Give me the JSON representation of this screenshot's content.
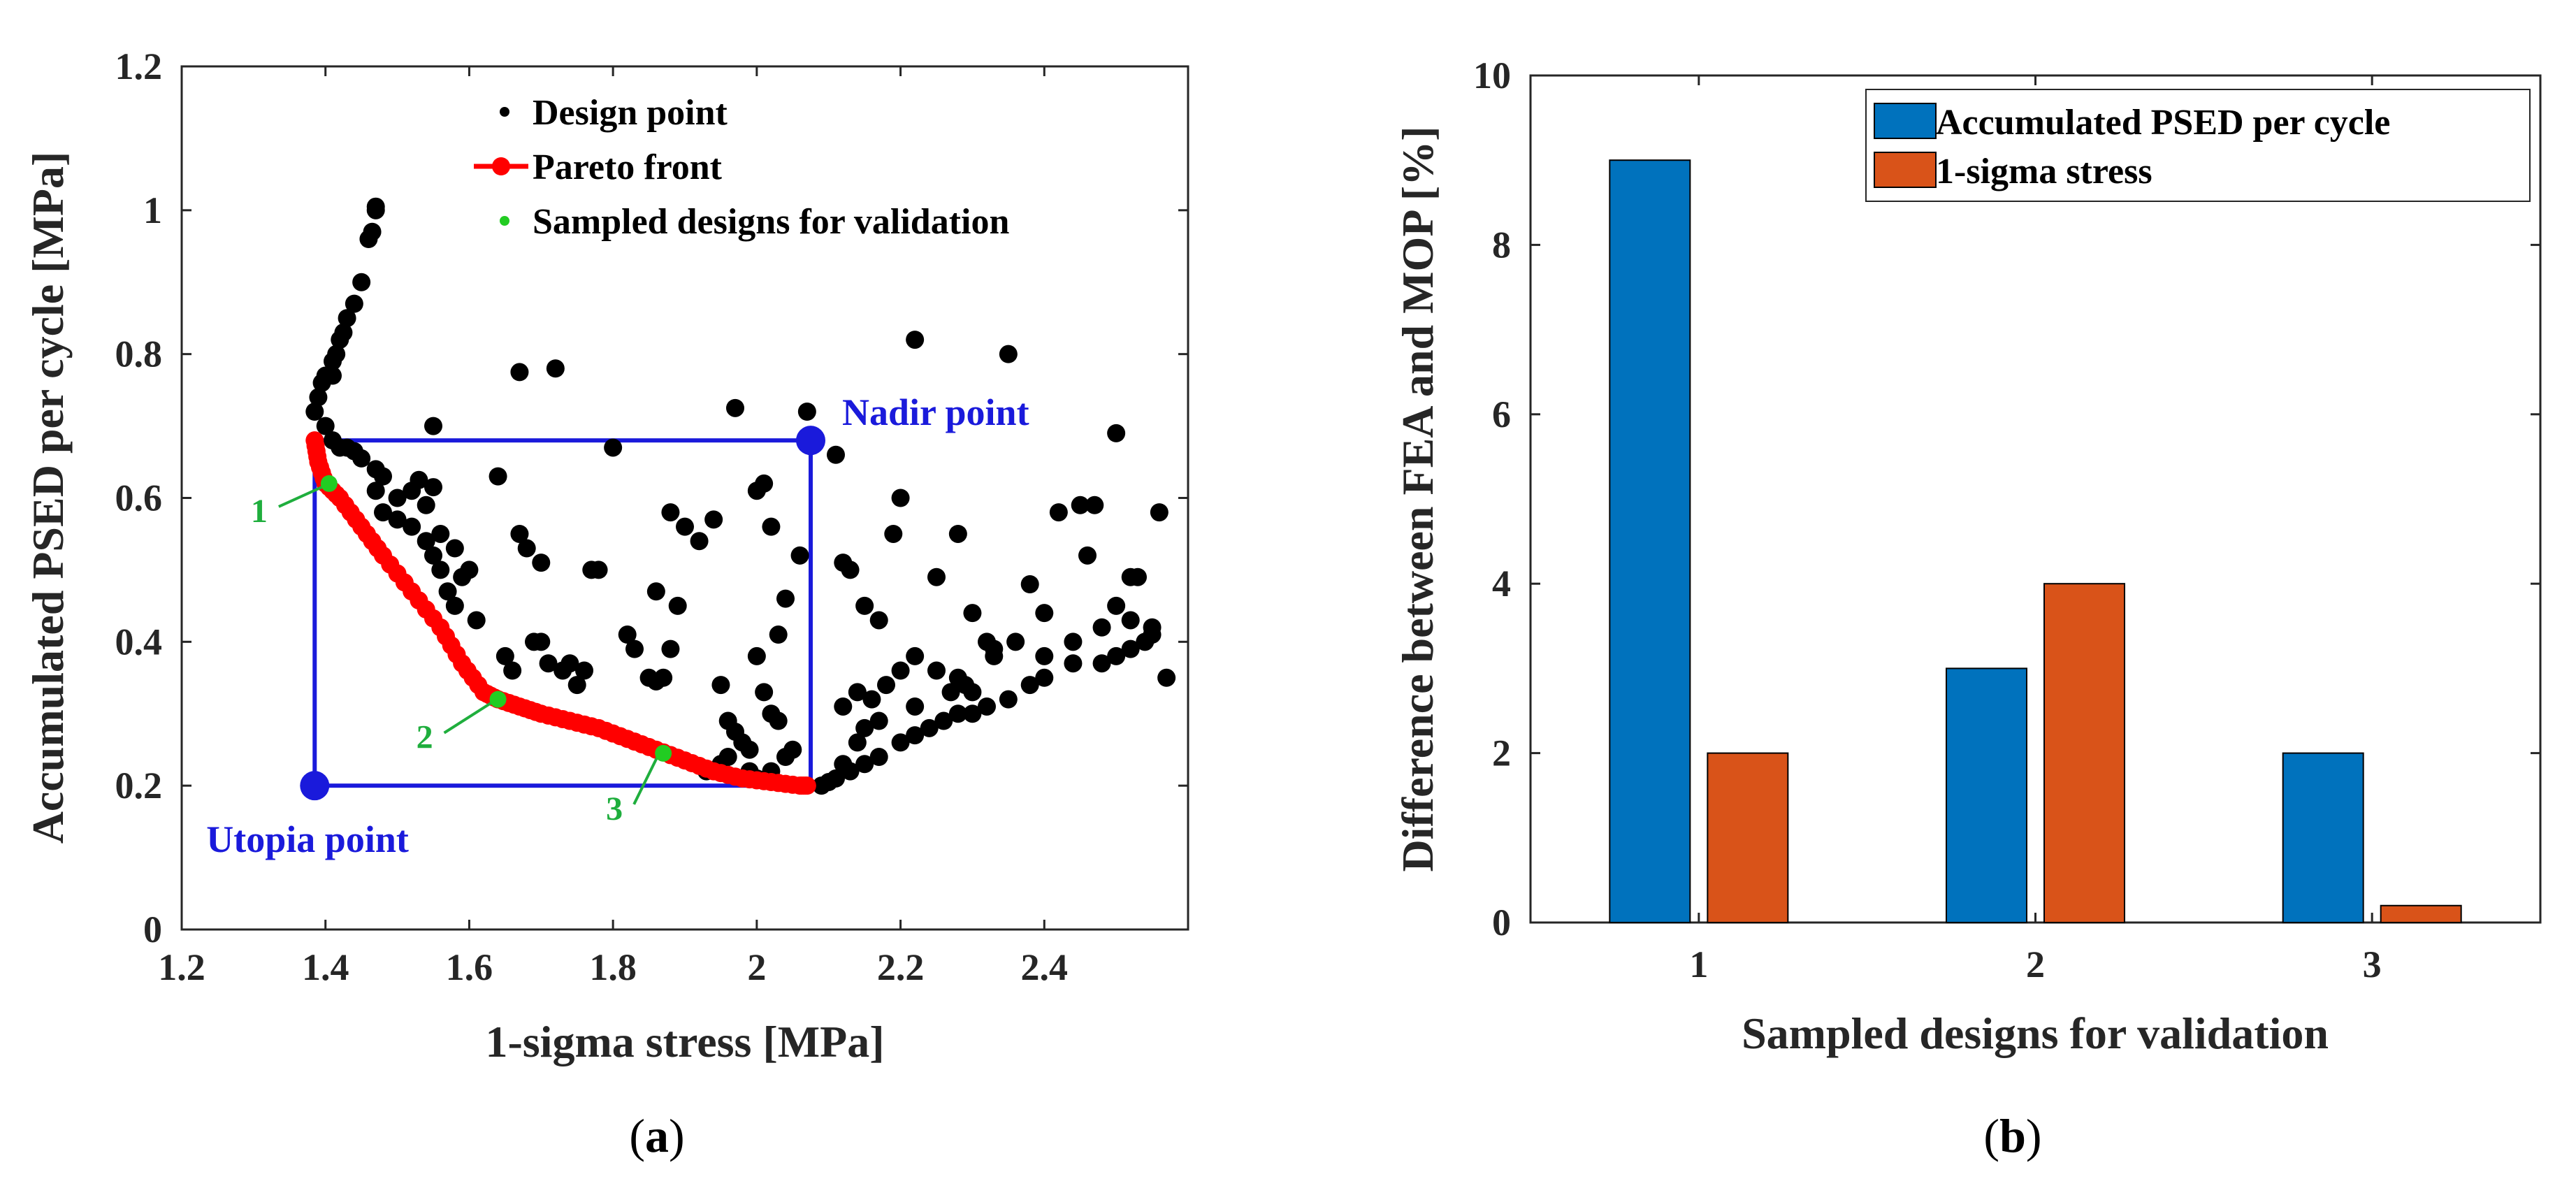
{
  "chart_data": [
    {
      "panel": "(a)",
      "type": "scatter",
      "title": "",
      "xlabel": "1-sigma stress [MPa]",
      "ylabel": "Accumulated PSED per cycle [MPa]",
      "xlim": [
        1.2,
        2.6
      ],
      "ylim": [
        0,
        1.2
      ],
      "xticks": [
        "1.2",
        "1.4",
        "1.6",
        "1.8",
        "2",
        "2.2",
        "2.4"
      ],
      "yticks": [
        "0",
        "0.2",
        "0.4",
        "0.6",
        "0.8",
        "1",
        "1.2"
      ],
      "legend": {
        "position": "top",
        "entries": [
          "Design point",
          "Pareto front",
          "Sampled designs for validation"
        ]
      },
      "colors": {
        "design": "#000000",
        "pareto": "#ff0000",
        "sampled": "#22cc22",
        "box": "#1a1adb",
        "annot_green": "#1fae3d"
      },
      "series": [
        {
          "name": "Design point",
          "points": [
            [
              1.385,
              0.72
            ],
            [
              1.39,
              0.74
            ],
            [
              1.395,
              0.76
            ],
            [
              1.4,
              0.77
            ],
            [
              1.41,
              0.79
            ],
            [
              1.415,
              0.8
            ],
            [
              1.42,
              0.82
            ],
            [
              1.425,
              0.83
            ],
            [
              1.43,
              0.85
            ],
            [
              1.44,
              0.87
            ],
            [
              1.45,
              0.9
            ],
            [
              1.46,
              0.96
            ],
            [
              1.465,
              0.97
            ],
            [
              1.47,
              1.0
            ],
            [
              1.47,
              1.005
            ],
            [
              1.41,
              0.77
            ],
            [
              1.4,
              0.7
            ],
            [
              1.41,
              0.68
            ],
            [
              1.42,
              0.67
            ],
            [
              1.43,
              0.67
            ],
            [
              1.44,
              0.665
            ],
            [
              1.45,
              0.655
            ],
            [
              1.47,
              0.64
            ],
            [
              1.48,
              0.63
            ],
            [
              1.47,
              0.61
            ],
            [
              1.48,
              0.58
            ],
            [
              1.5,
              0.57
            ],
            [
              1.5,
              0.6
            ],
            [
              1.52,
              0.61
            ],
            [
              1.53,
              0.625
            ],
            [
              1.55,
              0.615
            ],
            [
              1.54,
              0.59
            ],
            [
              1.52,
              0.56
            ],
            [
              1.54,
              0.54
            ],
            [
              1.55,
              0.52
            ],
            [
              1.56,
              0.55
            ],
            [
              1.58,
              0.53
            ],
            [
              1.59,
              0.49
            ],
            [
              1.56,
              0.5
            ],
            [
              1.57,
              0.47
            ],
            [
              1.58,
              0.45
            ],
            [
              1.6,
              0.5
            ],
            [
              1.61,
              0.43
            ],
            [
              1.55,
              0.7
            ],
            [
              1.64,
              0.63
            ],
            [
              1.67,
              0.55
            ],
            [
              1.68,
              0.53
            ],
            [
              1.7,
              0.51
            ],
            [
              1.65,
              0.38
            ],
            [
              1.66,
              0.36
            ],
            [
              1.67,
              0.775
            ],
            [
              1.72,
              0.78
            ],
            [
              1.69,
              0.4
            ],
            [
              1.7,
              0.4
            ],
            [
              1.71,
              0.37
            ],
            [
              1.73,
              0.36
            ],
            [
              1.74,
              0.37
            ],
            [
              1.75,
              0.34
            ],
            [
              1.76,
              0.36
            ],
            [
              1.77,
              0.5
            ],
            [
              1.78,
              0.5
            ],
            [
              1.8,
              0.67
            ],
            [
              1.82,
              0.41
            ],
            [
              1.83,
              0.39
            ],
            [
              1.85,
              0.35
            ],
            [
              1.86,
              0.345
            ],
            [
              1.87,
              0.35
            ],
            [
              1.88,
              0.39
            ],
            [
              1.89,
              0.45
            ],
            [
              1.86,
              0.47
            ],
            [
              1.88,
              0.58
            ],
            [
              1.9,
              0.56
            ],
            [
              1.92,
              0.54
            ],
            [
              1.94,
              0.57
            ],
            [
              1.95,
              0.34
            ],
            [
              1.96,
              0.29
            ],
            [
              1.97,
              0.275
            ],
            [
              1.98,
              0.26
            ],
            [
              1.99,
              0.25
            ],
            [
              2.0,
              0.38
            ],
            [
              2.01,
              0.33
            ],
            [
              2.02,
              0.3
            ],
            [
              2.03,
              0.29
            ],
            [
              2.04,
              0.46
            ],
            [
              2.03,
              0.41
            ],
            [
              2.01,
              0.62
            ],
            [
              2.0,
              0.61
            ],
            [
              1.97,
              0.725
            ],
            [
              2.02,
              0.56
            ],
            [
              2.05,
              0.25
            ],
            [
              2.06,
              0.52
            ],
            [
              2.07,
              0.72
            ],
            [
              1.93,
              0.22
            ],
            [
              1.95,
              0.23
            ],
            [
              1.96,
              0.24
            ],
            [
              1.99,
              0.22
            ],
            [
              2.0,
              0.21
            ],
            [
              2.02,
              0.22
            ],
            [
              2.04,
              0.24
            ],
            [
              2.09,
              0.2
            ],
            [
              2.1,
              0.205
            ],
            [
              2.11,
              0.21
            ],
            [
              2.12,
              0.23
            ],
            [
              2.13,
              0.22
            ],
            [
              2.15,
              0.23
            ],
            [
              2.17,
              0.24
            ],
            [
              2.2,
              0.26
            ],
            [
              2.22,
              0.27
            ],
            [
              2.24,
              0.28
            ],
            [
              2.26,
              0.29
            ],
            [
              2.28,
              0.3
            ],
            [
              2.3,
              0.3
            ],
            [
              2.32,
              0.31
            ],
            [
              2.35,
              0.32
            ],
            [
              2.38,
              0.34
            ],
            [
              2.4,
              0.35
            ],
            [
              2.44,
              0.37
            ],
            [
              2.48,
              0.37
            ],
            [
              2.5,
              0.38
            ],
            [
              2.52,
              0.39
            ],
            [
              2.54,
              0.4
            ],
            [
              2.12,
              0.31
            ],
            [
              2.14,
              0.33
            ],
            [
              2.16,
              0.32
            ],
            [
              2.18,
              0.34
            ],
            [
              2.2,
              0.36
            ],
            [
              2.22,
              0.38
            ],
            [
              2.25,
              0.36
            ],
            [
              2.28,
              0.35
            ],
            [
              2.3,
              0.33
            ],
            [
              2.33,
              0.38
            ],
            [
              2.36,
              0.4
            ],
            [
              2.4,
              0.38
            ],
            [
              2.44,
              0.4
            ],
            [
              2.48,
              0.42
            ],
            [
              2.52,
              0.43
            ],
            [
              2.55,
              0.42
            ],
            [
              2.11,
              0.66
            ],
            [
              2.12,
              0.51
            ],
            [
              2.13,
              0.5
            ],
            [
              2.15,
              0.45
            ],
            [
              2.17,
              0.43
            ],
            [
              2.19,
              0.55
            ],
            [
              2.2,
              0.6
            ],
            [
              2.22,
              0.82
            ],
            [
              2.25,
              0.49
            ],
            [
              2.28,
              0.55
            ],
            [
              2.3,
              0.44
            ],
            [
              2.32,
              0.4
            ],
            [
              2.35,
              0.8
            ],
            [
              2.38,
              0.48
            ],
            [
              2.42,
              0.58
            ],
            [
              2.45,
              0.59
            ],
            [
              2.47,
              0.59
            ],
            [
              2.5,
              0.69
            ],
            [
              2.52,
              0.49
            ],
            [
              2.53,
              0.49
            ],
            [
              2.56,
              0.58
            ],
            [
              2.57,
              0.35
            ],
            [
              2.14,
              0.26
            ],
            [
              2.15,
              0.28
            ],
            [
              2.17,
              0.29
            ],
            [
              2.22,
              0.31
            ],
            [
              2.27,
              0.33
            ],
            [
              2.29,
              0.34
            ],
            [
              2.33,
              0.39
            ],
            [
              2.4,
              0.44
            ],
            [
              2.46,
              0.52
            ],
            [
              2.5,
              0.45
            ],
            [
              2.55,
              0.41
            ]
          ]
        },
        {
          "name": "Pareto front",
          "points": [
            [
              1.385,
              0.68
            ],
            [
              1.39,
              0.65
            ],
            [
              1.4,
              0.62
            ],
            [
              1.42,
              0.6
            ],
            [
              1.45,
              0.56
            ],
            [
              1.48,
              0.52
            ],
            [
              1.52,
              0.47
            ],
            [
              1.56,
              0.42
            ],
            [
              1.59,
              0.37
            ],
            [
              1.62,
              0.33
            ],
            [
              1.64,
              0.32
            ],
            [
              1.67,
              0.31
            ],
            [
              1.7,
              0.3
            ],
            [
              1.74,
              0.29
            ],
            [
              1.78,
              0.28
            ],
            [
              1.82,
              0.265
            ],
            [
              1.86,
              0.25
            ],
            [
              1.9,
              0.235
            ],
            [
              1.94,
              0.22
            ],
            [
              1.98,
              0.21
            ],
            [
              2.02,
              0.205
            ],
            [
              2.06,
              0.2
            ],
            [
              2.07,
              0.2
            ]
          ]
        },
        {
          "name": "Sampled designs for validation",
          "points": [
            [
              1.405,
              0.62
            ],
            [
              1.64,
              0.32
            ],
            [
              1.87,
              0.245
            ]
          ],
          "labels": [
            "1",
            "2",
            "3"
          ]
        }
      ],
      "annotations": [
        {
          "text": "Nadir point",
          "point": [
            2.075,
            0.68
          ]
        },
        {
          "text": "Utopia point",
          "point": [
            1.385,
            0.2
          ]
        }
      ]
    },
    {
      "panel": "(b)",
      "type": "bar",
      "title": "",
      "xlabel": "Sampled designs for validation",
      "ylabel": "Difference between FEA and MOP [%]",
      "categories": [
        "1",
        "2",
        "3"
      ],
      "ylim": [
        0,
        10
      ],
      "yticks": [
        "0",
        "2",
        "4",
        "6",
        "8",
        "10"
      ],
      "legend": {
        "position": "top-right"
      },
      "series": [
        {
          "name": "Accumulated PSED per cycle",
          "values": [
            9,
            3,
            2
          ],
          "color": "#0072bd"
        },
        {
          "name": "1-sigma stress",
          "values": [
            2,
            4,
            0.2
          ],
          "color": "#d95319"
        }
      ]
    }
  ],
  "panel_labels": {
    "a": "a",
    "b": "b"
  }
}
